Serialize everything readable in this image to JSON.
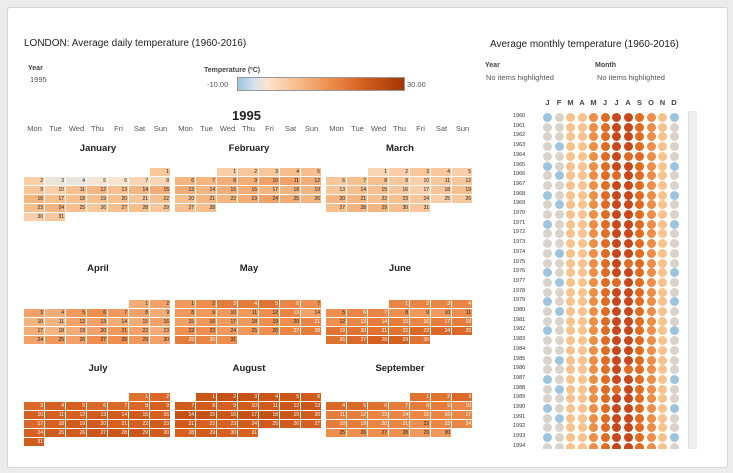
{
  "left_title": "LONDON: Average daily temperature (1960-2016)",
  "right_title": "Average monthly temperature (1960-2016)",
  "filters": {
    "year_label": "Year",
    "year_value": "1995",
    "temp_label": "Temperature (ºC)",
    "temp_min": "-10.00",
    "temp_max": "30.00",
    "right_year_label": "Year",
    "right_year_value": "No items highlighted",
    "right_month_label": "Month",
    "right_month_value": "No items highlighted"
  },
  "calendar_year": "1995",
  "weekdays": [
    "Mon",
    "Tue",
    "Wed",
    "Thu",
    "Fri",
    "Sat",
    "Sun"
  ],
  "months": [
    {
      "name": "January",
      "start": 6,
      "days": 31,
      "temps": [
        10,
        9,
        4,
        3,
        5,
        6,
        8,
        8,
        10,
        9,
        11,
        12,
        11,
        12,
        13,
        12,
        11,
        11,
        11,
        11,
        10,
        11,
        11,
        12,
        11,
        10,
        11,
        11,
        10,
        9,
        10
      ]
    },
    {
      "name": "February",
      "start": 2,
      "days": 28,
      "temps": [
        9,
        10,
        10,
        11,
        11,
        12,
        12,
        13,
        13,
        14,
        14,
        13,
        13,
        12,
        13,
        13,
        12,
        12,
        12,
        11,
        12,
        12,
        13,
        14,
        13,
        12,
        11,
        11
      ]
    },
    {
      "name": "March",
      "start": 2,
      "days": 31,
      "temps": [
        8,
        9,
        10,
        10,
        9,
        10,
        11,
        11,
        10,
        9,
        10,
        10,
        10,
        11,
        11,
        10,
        9,
        10,
        11,
        12,
        12,
        11,
        11,
        10,
        9,
        10,
        11,
        12,
        12,
        11,
        10
      ]
    },
    {
      "name": "April",
      "start": 5,
      "days": 30,
      "temps": [
        13,
        14,
        14,
        13,
        15,
        16,
        15,
        14,
        13,
        12,
        12,
        14,
        14,
        13,
        13,
        14,
        13,
        12,
        13,
        14,
        15,
        14,
        13,
        14,
        15,
        14,
        16,
        16,
        15,
        14
      ]
    },
    {
      "name": "May",
      "start": 0,
      "days": 31,
      "temps": [
        15,
        16,
        18,
        18,
        19,
        17,
        16,
        15,
        15,
        15,
        15,
        16,
        17,
        14,
        14,
        15,
        15,
        15,
        16,
        16,
        17,
        16,
        16,
        15,
        15,
        16,
        17,
        18,
        18,
        17,
        16
      ]
    },
    {
      "name": "June",
      "start": 3,
      "days": 30,
      "temps": [
        17,
        17,
        17,
        17,
        16,
        17,
        17,
        16,
        15,
        15,
        16,
        16,
        17,
        18,
        18,
        17,
        18,
        18,
        19,
        19,
        19,
        19,
        20,
        20,
        20,
        19,
        20,
        21,
        21,
        19
      ]
    },
    {
      "name": "July",
      "start": 5,
      "days": 31,
      "temps": [
        19,
        20,
        20,
        21,
        21,
        20,
        20,
        20,
        21,
        21,
        21,
        21,
        22,
        22,
        22,
        21,
        20,
        21,
        22,
        22,
        21,
        21,
        22,
        21,
        22,
        22,
        23,
        23,
        23,
        22,
        22
      ]
    },
    {
      "name": "August",
      "start": 1,
      "days": 31,
      "temps": [
        23,
        24,
        24,
        23,
        23,
        22,
        22,
        22,
        21,
        22,
        22,
        23,
        23,
        24,
        24,
        23,
        24,
        24,
        23,
        22,
        22,
        21,
        21,
        22,
        22,
        22,
        21,
        21,
        22,
        21,
        21
      ]
    },
    {
      "name": "September",
      "start": 4,
      "days": 30,
      "temps": [
        19,
        19,
        20,
        20,
        20,
        19,
        18,
        18,
        18,
        17,
        18,
        18,
        17,
        17,
        17,
        17,
        17,
        18,
        18,
        17,
        17,
        16,
        17,
        17,
        16,
        16,
        16,
        16,
        15,
        15
      ]
    }
  ],
  "month_initials": [
    "J",
    "F",
    "M",
    "A",
    "M",
    "J",
    "J",
    "A",
    "S",
    "O",
    "N",
    "D"
  ],
  "years": [
    "1960",
    "1961",
    "1962",
    "1963",
    "1964",
    "1965",
    "1966",
    "1967",
    "1968",
    "1969",
    "1970",
    "1971",
    "1972",
    "1973",
    "1974",
    "1975",
    "1976",
    "1977",
    "1978",
    "1979",
    "1980",
    "1981",
    "1982",
    "1983",
    "1984",
    "1985",
    "1986",
    "1987",
    "1988",
    "1989",
    "1990",
    "1991",
    "1992",
    "1993",
    "1994"
  ],
  "colors": {
    "cold": "#9ec5e0",
    "neutral": "#d9d3cc",
    "light": "#f7c28c",
    "mid": "#ee8d45",
    "warm": "#e06b22",
    "hot": "#c9471a"
  }
}
